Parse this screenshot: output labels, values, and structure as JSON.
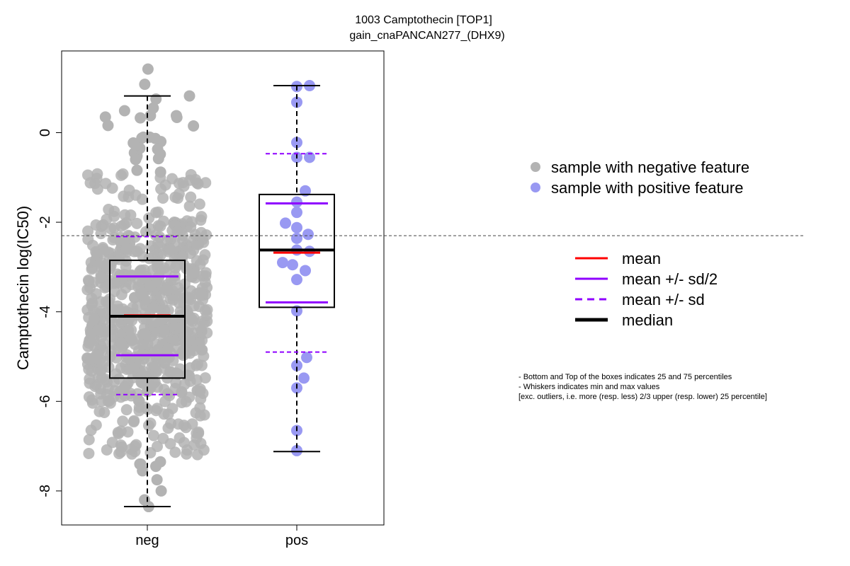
{
  "chart_data": {
    "type": "box",
    "title": "1003 Camptothecin [TOP1]",
    "subtitle": "gain_cnaPANCAN277_(DHX9)",
    "ylabel": "Camptothecin log(IC50)",
    "xlabel": "",
    "ylim": [
      -8.7,
      1.8
    ],
    "yticks": [
      "0",
      "-2",
      "-4",
      "-6",
      "-8"
    ],
    "ytick_values": [
      0,
      -2,
      -4,
      -6,
      -8
    ],
    "categories": [
      "neg",
      "pos"
    ],
    "reference_line": -2.3,
    "groups": [
      {
        "name": "neg",
        "color": "#b3b3b3",
        "n_points": 760,
        "min": -8.35,
        "q1": -5.48,
        "median": -4.1,
        "q3": -2.85,
        "max": 0.82,
        "mean": -4.08,
        "mean_minus_half_sd": -4.97,
        "mean_plus_half_sd": -3.21,
        "mean_minus_sd": -5.85,
        "mean_plus_sd": -2.32,
        "points": [
          1.42,
          1.08,
          0.82,
          0.75,
          0.55,
          0.38,
          0.35,
          0.34,
          0.33,
          0.38,
          0.49,
          0.16,
          0.15,
          -0.1,
          -0.1,
          -0.13,
          -0.2,
          -0.23,
          -0.12,
          -0.35,
          -0.37,
          -0.45,
          -0.48,
          -0.52,
          -0.55,
          -0.58,
          -0.6,
          -0.84,
          -0.88,
          -8.0,
          -8.2,
          -8.35,
          -7.75,
          -7.55,
          -7.4,
          -7.45,
          -7.4,
          -7.35
        ]
      },
      {
        "name": "pos",
        "color": "#9999f2",
        "min": -7.12,
        "q1": -3.9,
        "median": -2.62,
        "q3": -1.38,
        "max": 1.05,
        "mean": -2.68,
        "mean_minus_half_sd": -3.79,
        "mean_plus_half_sd": -1.58,
        "mean_minus_sd": -4.9,
        "mean_plus_sd": -0.47,
        "points": [
          1.03,
          1.05,
          0.68,
          -0.22,
          -0.55,
          -0.55,
          -1.3,
          -1.55,
          -1.78,
          -2.02,
          -2.12,
          -2.27,
          -2.36,
          -2.62,
          -2.65,
          -2.9,
          -2.95,
          -3.08,
          -3.28,
          -3.98,
          -5.02,
          -5.2,
          -5.48,
          -5.7,
          -6.65,
          -7.1
        ]
      }
    ],
    "legend_points": [
      {
        "label": "sample with negative feature",
        "color": "#b3b3b3"
      },
      {
        "label": "sample with positive feature",
        "color": "#9999f2"
      }
    ],
    "legend_lines": [
      {
        "label": "mean",
        "color": "#ff0000",
        "style": "solid"
      },
      {
        "label": "mean +/- sd/2",
        "color": "#8f00ff",
        "style": "solid"
      },
      {
        "label": "mean +/- sd",
        "color": "#8f00ff",
        "style": "dashed"
      },
      {
        "label": "median",
        "color": "#000000",
        "style": "thick"
      }
    ],
    "notes": [
      "- Bottom and Top of the boxes indicates 25 and 75 percentiles",
      "- Whiskers indicates min and max values",
      "[exc. outliers, i.e. more (resp. less) 2/3 upper (resp. lower) 25 percentile]"
    ]
  }
}
